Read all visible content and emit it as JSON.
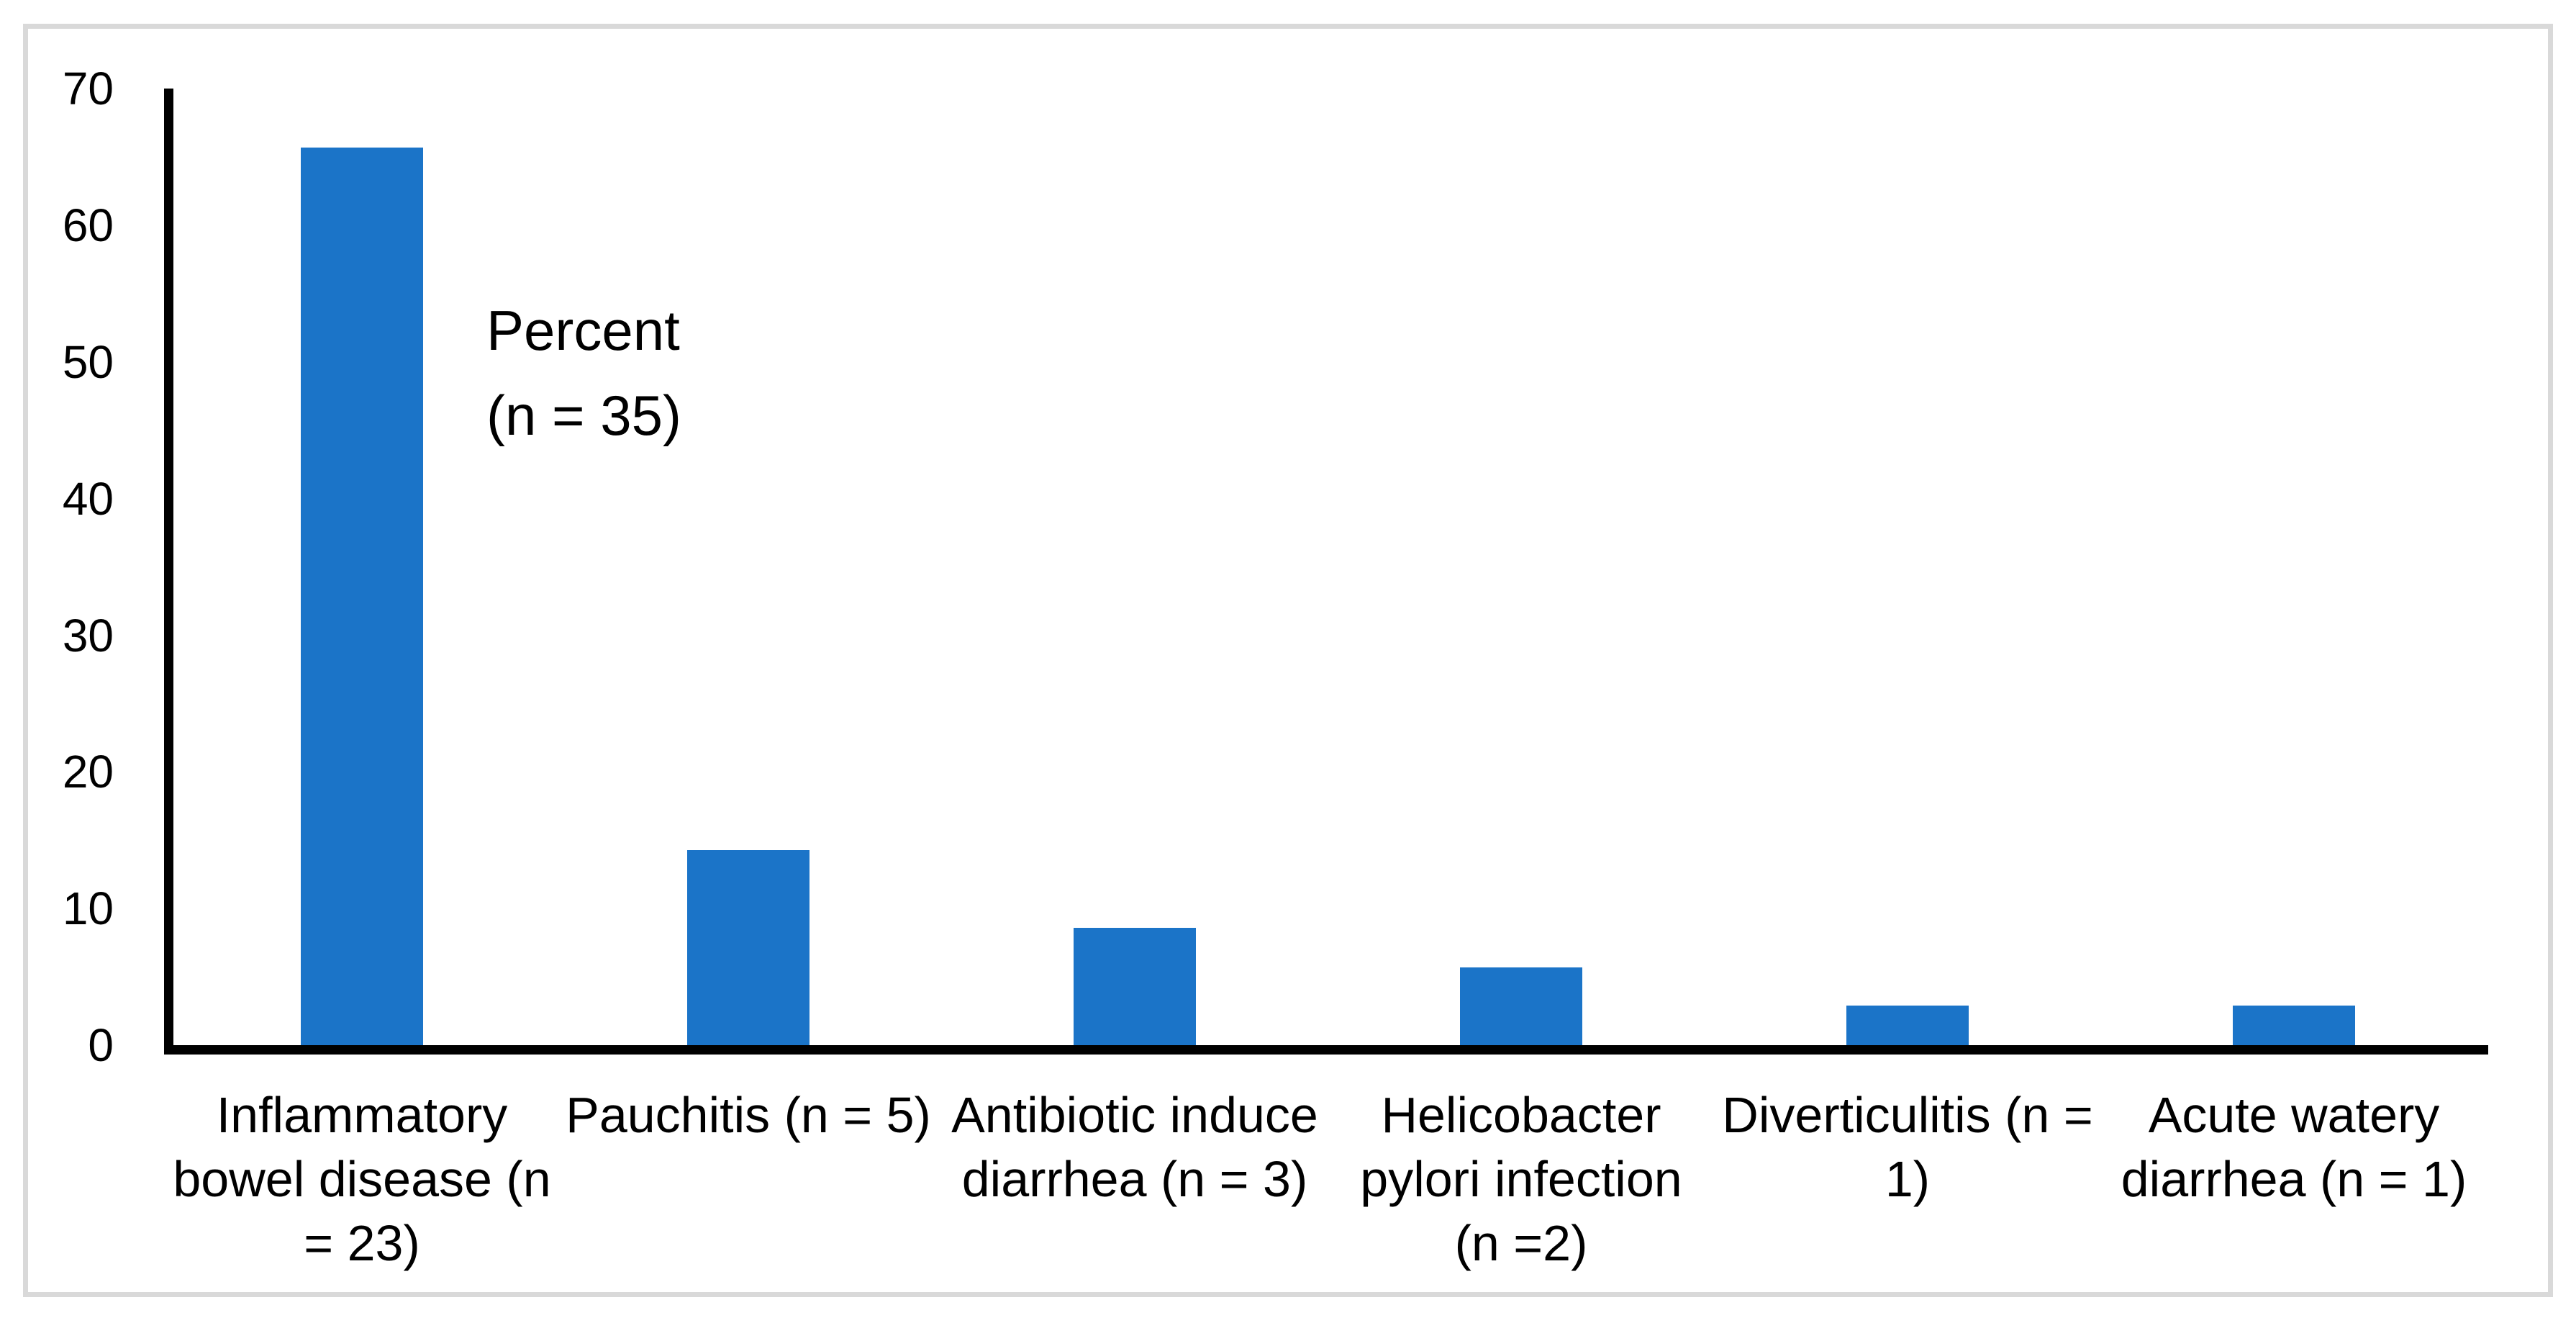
{
  "chart_data": {
    "type": "bar",
    "title": "",
    "annotation": "Percent\n(n = 35)",
    "categories": [
      "Inflammatory bowel disease (n = 23)",
      "Pauchitis (n = 5)",
      "Antibiotic induce diarrhea (n = 3)",
      "Helicobacter pylori infection (n =2)",
      "Diverticulitis (n = 1)",
      "Acute watery diarrhea (n = 1)"
    ],
    "category_display": [
      "Inflammatory\nbowel disease (n\n= 23)",
      "Pauchitis (n = 5)",
      "Antibiotic induce\ndiarrhea (n = 3)",
      "Helicobacter\npylori infection\n(n =2)",
      "Diverticulitis (n =\n1)",
      "Acute watery\ndiarrhea (n = 1)"
    ],
    "counts": [
      23,
      5,
      3,
      2,
      1,
      1
    ],
    "total_n": 35,
    "values": [
      65.7,
      14.3,
      8.6,
      5.7,
      2.9,
      2.9
    ],
    "xlabel": "",
    "ylabel": "Percent",
    "ylim": [
      0,
      70
    ],
    "yticks": [
      0,
      10,
      20,
      30,
      40,
      50,
      60,
      70
    ],
    "grid": false,
    "legend": "none",
    "bar_color": "#1b74c8",
    "axis_color": "#000000",
    "frame_color": "#d9d9d9",
    "background_color": "#ffffff"
  }
}
